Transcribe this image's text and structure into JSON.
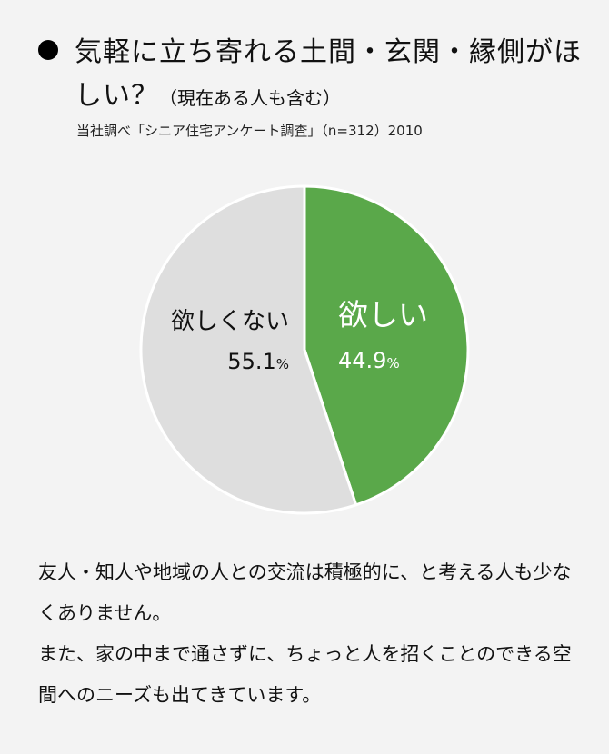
{
  "header": {
    "title": "気軽に立ち寄れる土間・玄関・縁側がほしい？",
    "subtitle": "（現在ある人も含む）",
    "source": "当社調べ「シニア住宅アンケート調査」（n=312）2010"
  },
  "chart_data": {
    "type": "pie",
    "title": "気軽に立ち寄れる土間・玄関・縁側がほしい？（現在ある人も含む）",
    "unit": "%",
    "slices": [
      {
        "label": "欲しい",
        "value": 44.9,
        "value_text": "44.9",
        "color": "#5aa84a",
        "text_color": "#ffffff"
      },
      {
        "label": "欲しくない",
        "value": 55.1,
        "value_text": "55.1",
        "color": "#dedede",
        "text_color": "#111111"
      }
    ]
  },
  "description": {
    "paragraph1": "友人・知人や地域の人との交流は積極的に、と考える人も少なくありません。",
    "paragraph2": "また、家の中まで通さずに、ちょっと人を招くことのできる空間へのニーズも出てきています。"
  }
}
